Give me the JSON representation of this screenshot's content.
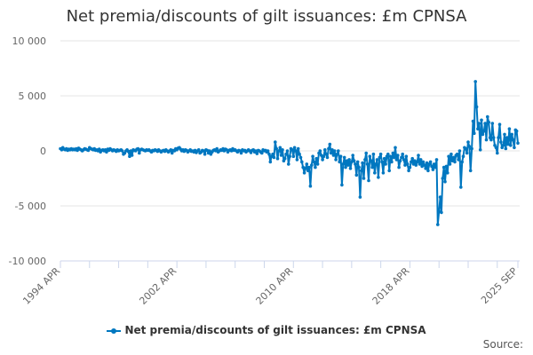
{
  "chart_data": {
    "type": "line",
    "title": "Net premia/discounts of gilt issuances: £m CPNSA",
    "xlabel": "",
    "ylabel": "",
    "start": "1994 APR",
    "end": "2025 SEP",
    "frequency": "monthly",
    "x_tick_labels": [
      "1994 APR",
      "2002 APR",
      "2010 APR",
      "2018 APR",
      "2025 SEP"
    ],
    "y_tick_labels": [
      "10 000",
      "5 000",
      "0",
      "-5 000",
      "-10 000"
    ],
    "y_ticks": [
      10000,
      5000,
      0,
      -5000,
      -10000
    ],
    "ylim": [
      -10000,
      10000
    ],
    "grid": true,
    "legend_position": "bottom",
    "color": "#0077c0",
    "series": [
      {
        "name": "Net premia/discounts of gilt issuances: £m CPNSA",
        "values": [
          200,
          100,
          300,
          150,
          100,
          200,
          50,
          150,
          100,
          200,
          100,
          150,
          100,
          200,
          50,
          250,
          150,
          100,
          0,
          100,
          200,
          150,
          100,
          50,
          300,
          200,
          150,
          100,
          200,
          50,
          100,
          0,
          150,
          -100,
          50,
          100,
          0,
          100,
          -100,
          150,
          50,
          200,
          100,
          0,
          100,
          50,
          -50,
          100,
          0,
          50,
          100,
          0,
          -300,
          -200,
          0,
          100,
          -50,
          -500,
          0,
          -400,
          100,
          50,
          0,
          150,
          200,
          -200,
          100,
          150,
          100,
          50,
          0,
          100,
          50,
          100,
          0,
          -100,
          50,
          0,
          100,
          50,
          -50,
          100,
          0,
          -100,
          0,
          50,
          -50,
          100,
          0,
          -100,
          0,
          100,
          -200,
          50,
          0,
          200,
          100,
          250,
          300,
          150,
          0,
          100,
          -50,
          100,
          50,
          -100,
          0,
          100,
          -50,
          0,
          -100,
          50,
          -150,
          0,
          100,
          -200,
          -100,
          50,
          0,
          -300,
          100,
          50,
          -200,
          0,
          -300,
          -100,
          50,
          100,
          0,
          200,
          -100,
          0,
          100,
          50,
          200,
          0,
          150,
          100,
          -100,
          50,
          100,
          0,
          200,
          50,
          100,
          0,
          -100,
          50,
          0,
          -200,
          100,
          0,
          50,
          -100,
          0,
          100,
          0,
          -150,
          50,
          100,
          -100,
          0,
          -250,
          50,
          0,
          -100,
          -200,
          100,
          0,
          50,
          -100,
          0,
          -300,
          -1000,
          -500,
          -300,
          -600,
          800,
          200,
          -700,
          0,
          300,
          -400,
          100,
          -900,
          -700,
          -300,
          0,
          -1200,
          -500,
          200,
          100,
          -500,
          300,
          0,
          -800,
          200,
          -300,
          -600,
          -1000,
          -1500,
          -2000,
          -1600,
          -1200,
          -1800,
          -1500,
          -3200,
          -1300,
          -500,
          -1000,
          -1500,
          -700,
          -1200,
          -200,
          0,
          -400,
          -800,
          -500,
          100,
          -300,
          -600,
          200,
          600,
          -200,
          100,
          -400,
          0,
          -800,
          -300,
          0,
          -1000,
          -500,
          -3100,
          -1200,
          -600,
          -1500,
          -900,
          -1300,
          -800,
          -1600,
          -1000,
          -400,
          -900,
          -1200,
          -2200,
          -1000,
          -1500,
          -4200,
          -1800,
          -1100,
          -2500,
          -800,
          -200,
          -1200,
          -2700,
          -500,
          -900,
          -1500,
          -300,
          -2000,
          -1200,
          -800,
          -2400,
          -600,
          -300,
          -1000,
          -2000,
          -700,
          -1200,
          -500,
          -300,
          -1800,
          -500,
          -1000,
          -200,
          -600,
          300,
          -800,
          -400,
          -1500,
          -900,
          -600,
          -300,
          -800,
          -1300,
          -500,
          -1200,
          -1800,
          -1500,
          -1000,
          -700,
          -1200,
          -900,
          -1300,
          -1000,
          -400,
          -1200,
          -800,
          -1400,
          -1000,
          -1300,
          -1600,
          -1100,
          -1800,
          -1200,
          -1000,
          -1400,
          -1700,
          -1200,
          -1500,
          -800,
          -6700,
          -5500,
          -4200,
          -5600,
          -2500,
          -1500,
          -2800,
          -1400,
          -2000,
          -500,
          -1200,
          -300,
          -900,
          -600,
          -1000,
          -400,
          -300,
          -800,
          0,
          -3300,
          -1000,
          -500,
          300,
          200,
          -200,
          800,
          400,
          -1800,
          200,
          2700,
          1600,
          6300,
          4000,
          2000,
          2500,
          100,
          2800,
          1500,
          1800,
          2500,
          1000,
          3100,
          2600,
          1200,
          1000,
          2500,
          1200,
          500,
          300,
          -200,
          1200,
          2400,
          800,
          300,
          500,
          1500,
          200,
          1200,
          600,
          2000,
          500,
          1500,
          1000,
          300,
          1900,
          1800,
          700
        ]
      }
    ]
  },
  "legend": {
    "label": "Net premia/discounts of gilt issuances: £m CPNSA"
  },
  "source": "Source:"
}
